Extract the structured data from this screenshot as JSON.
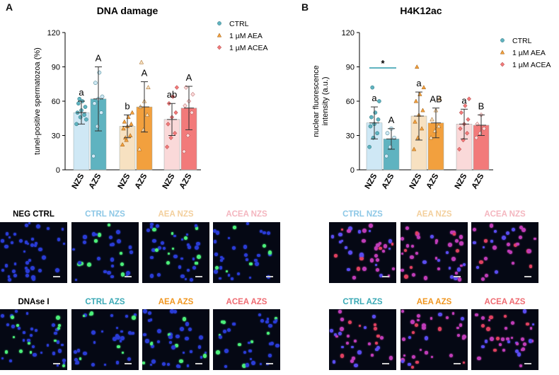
{
  "panels": {
    "a_letter": "A",
    "b_letter": "B"
  },
  "colors": {
    "ctrl": "#5fb3c0",
    "ctrl_light": "#cfe8f5",
    "aea": "#f2a03e",
    "aea_light": "#f7e1c1",
    "acea": "#f27a7a",
    "acea_light": "#fad9d9",
    "label_ctrl": "#8cc7e6",
    "label_aea": "#f3cf9c",
    "label_acea": "#f4b6bf",
    "label_ctrl_azs": "#3aa9b5",
    "label_aea_azs": "#f0961f",
    "label_acea_azs": "#ef6b72"
  },
  "chart_data": [
    {
      "type": "bar",
      "title": "DNA damage",
      "ylabel": "tunel-positive spermatozoa (%)",
      "ylim": [
        0,
        120
      ],
      "yticks": [
        "0",
        "30",
        "60",
        "90",
        "120"
      ],
      "categories": [
        "NZS",
        "AZS",
        "NZS",
        "AZS",
        "NZS",
        "AZS"
      ],
      "groups": [
        "CTRL",
        "CTRL",
        "1 µM AEA",
        "1 µM AEA",
        "1 µM ACEA",
        "1 µM ACEA"
      ],
      "values": [
        50,
        62,
        38,
        55,
        44,
        54
      ],
      "sd": [
        10,
        28,
        10,
        22,
        14,
        19
      ],
      "letters": [
        "a",
        "A",
        "b",
        "A",
        "ab",
        "A"
      ],
      "points": [
        [
          40,
          46,
          48,
          50,
          52,
          55,
          58,
          60,
          44,
          62
        ],
        [
          12,
          38,
          50,
          58,
          62,
          64,
          76,
          85
        ],
        [
          22,
          26,
          30,
          36,
          38,
          40,
          42,
          46,
          50,
          28
        ],
        [
          18,
          35,
          48,
          55,
          60,
          72,
          94
        ],
        [
          20,
          28,
          32,
          40,
          46,
          50,
          58,
          64,
          72
        ],
        [
          16,
          30,
          50,
          56,
          60,
          66,
          72
        ]
      ],
      "legend": [
        "CTRL",
        "1 µM AEA",
        "1 µM ACEA"
      ]
    },
    {
      "type": "bar",
      "title": "H4K12ac",
      "ylabel": "nuclear fluorescence intensity (a.u.)",
      "ylim": [
        0,
        120
      ],
      "yticks": [
        "0",
        "30",
        "60",
        "90",
        "120"
      ],
      "categories": [
        "NZS",
        "AZS",
        "NZS",
        "AZS",
        "NZS",
        "AZS"
      ],
      "groups": [
        "CTRL",
        "CTRL",
        "1 µM AEA",
        "1 µM AEA",
        "1 µM ACEA",
        "1 µM ACEA"
      ],
      "values": [
        41,
        27,
        47,
        41,
        40,
        39
      ],
      "sd": [
        14,
        9,
        21,
        13,
        13,
        9
      ],
      "letters": [
        "a",
        "A",
        "a",
        "AB",
        "a",
        "B"
      ],
      "points": [
        [
          20,
          28,
          32,
          38,
          40,
          44,
          46,
          50,
          60,
          72
        ],
        [
          12,
          20,
          28,
          32,
          36
        ],
        [
          18,
          28,
          36,
          42,
          48,
          52,
          60,
          66,
          72,
          90
        ],
        [
          28,
          34,
          38,
          44,
          52,
          62
        ],
        [
          18,
          26,
          32,
          36,
          40,
          44,
          50,
          56,
          62
        ],
        [
          28,
          32,
          36,
          40,
          48
        ]
      ],
      "significance": "*",
      "legend": [
        "CTRL",
        "1 µM AEA",
        "1 µM ACEA"
      ]
    }
  ],
  "micrographs": {
    "a_labels": [
      "NEG CTRL",
      "CTRL NZS",
      "AEA NZS",
      "ACEA NZS",
      "DNAse I",
      "CTRL AZS",
      "AEA AZS",
      "ACEA AZS"
    ],
    "b_labels": [
      "CTRL NZS",
      "AEA NZS",
      "ACEA NZS",
      "CTRL AZS",
      "AEA AZS",
      "ACEA AZS"
    ]
  }
}
